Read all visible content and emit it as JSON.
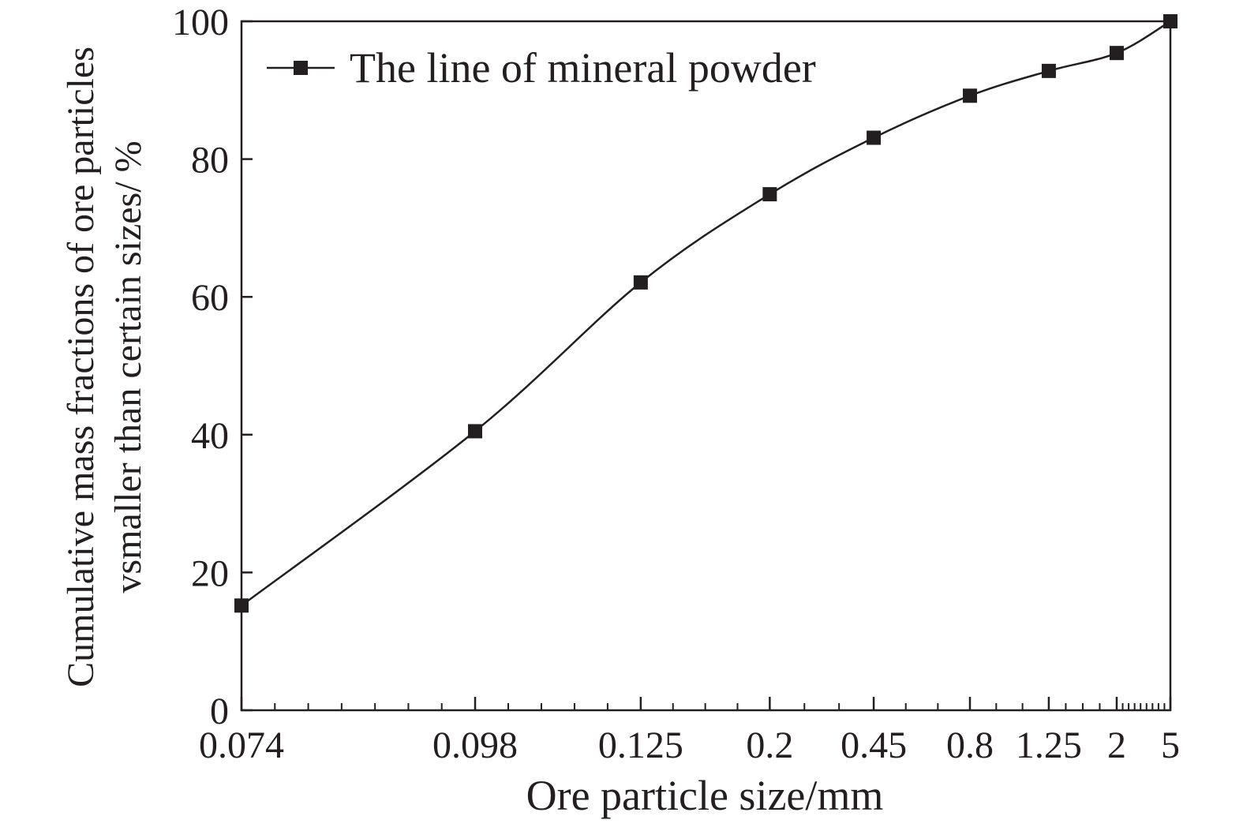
{
  "chart_data": {
    "type": "line",
    "x_scale": "categorical-uneven",
    "categories": [
      "0.074",
      "0.098",
      "0.125",
      "0.2",
      "0.45",
      "0.8",
      "1.25",
      "2",
      "5"
    ],
    "series": [
      {
        "name": "The line of mineral powder",
        "marker": "square",
        "smooth": true,
        "values": [
          15.2,
          40.5,
          62.1,
          74.9,
          83.1,
          89.2,
          92.8,
          95.4,
          100.0
        ]
      }
    ],
    "xlabel": "Ore particle size/mm",
    "ylabel_lines": [
      "Cumulative mass fractions of ore particles",
      "vsmaller than certain sizes/ %"
    ],
    "ylim": [
      0,
      100
    ],
    "yticks": [
      "0",
      "20",
      "40",
      "60",
      "80",
      "100"
    ],
    "grid": false,
    "legend_position": "top-left",
    "colors": {
      "line": "#231f20",
      "marker": "#231f20",
      "axis": "#231f20",
      "background": "#ffffff"
    }
  }
}
